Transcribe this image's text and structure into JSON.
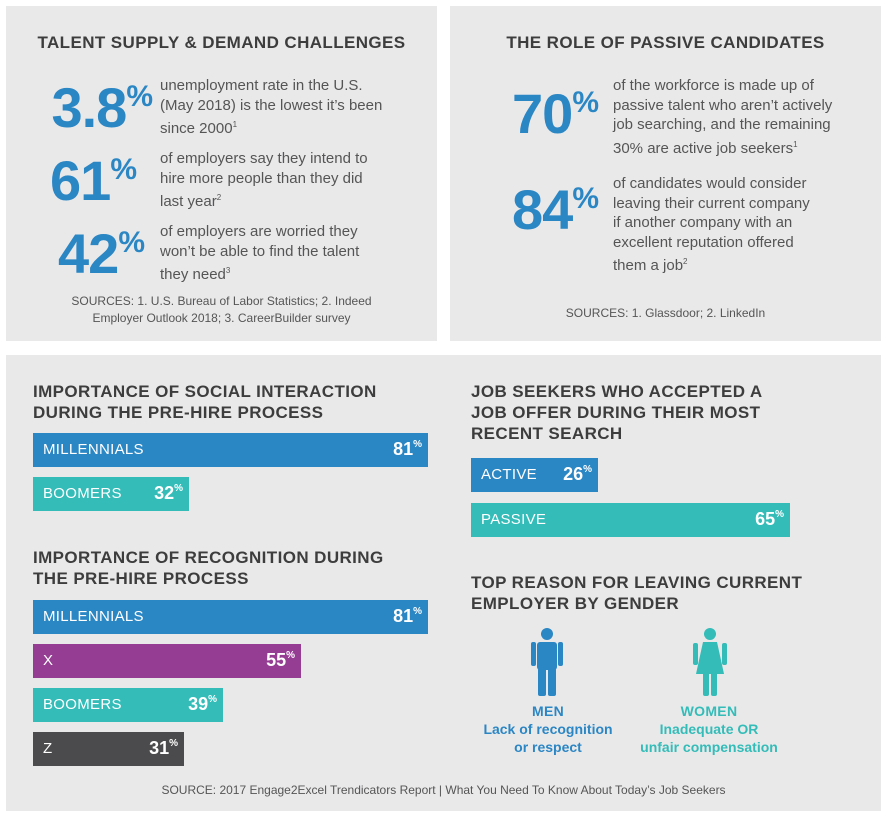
{
  "colors": {
    "blue": "#2b86c4",
    "teal": "#33bcb8",
    "purple": "#943d93",
    "dark": "#4b4b4d",
    "panel": "#e9e9ea"
  },
  "supply": {
    "title": "TALENT SUPPLY & DEMAND CHALLENGES",
    "stats": [
      {
        "num": "3.8",
        "pct": "%",
        "lines": [
          "unemployment rate in the U.S.",
          "(May 2018) is the lowest it’s been",
          "since 2000"
        ],
        "ref": "1"
      },
      {
        "num": "61",
        "pct": "%",
        "lines": [
          "of employers say they intend to",
          "hire more people than they did",
          "last year"
        ],
        "ref": "2"
      },
      {
        "num": "42",
        "pct": "%",
        "lines": [
          "of employers are worried they",
          "won’t be able to find the talent",
          "they need"
        ],
        "ref": "3"
      }
    ],
    "sources_line1": "SOURCES: 1. U.S. Bureau of Labor Statistics; 2. Indeed",
    "sources_line2": "Employer Outlook 2018; 3. CareerBuilder survey"
  },
  "passive": {
    "title": "THE ROLE OF PASSIVE CANDIDATES",
    "stats": [
      {
        "num": "70",
        "pct": "%",
        "lines": [
          "of the workforce is made up of",
          "passive talent who aren’t actively",
          "job searching, and the remaining",
          "30% are active job seekers"
        ],
        "ref": "1"
      },
      {
        "num": "84",
        "pct": "%",
        "lines": [
          "of candidates would consider",
          "leaving their current company",
          "if another company with an",
          "excellent reputation offered",
          "them a job"
        ],
        "ref": "2"
      }
    ],
    "sources": "SOURCES: 1. Glassdoor; 2. LinkedIn"
  },
  "chart_data": [
    {
      "type": "bar",
      "title_line1": "IMPORTANCE OF SOCIAL INTERACTION",
      "title_line2": "DURING THE PRE-HIRE PROCESS",
      "unit": "%",
      "xlim": [
        0,
        100
      ],
      "categories": [
        "MILLENNIALS",
        "BOOMERS"
      ],
      "values": [
        81,
        32
      ],
      "colors": [
        "#2b86c4",
        "#33bcb8"
      ]
    },
    {
      "type": "bar",
      "title_line1": "IMPORTANCE OF RECOGNITION DURING",
      "title_line2": "THE PRE-HIRE PROCESS",
      "unit": "%",
      "xlim": [
        0,
        100
      ],
      "categories": [
        "MILLENNIALS",
        "X",
        "BOOMERS",
        "Z"
      ],
      "values": [
        81,
        55,
        39,
        31
      ],
      "colors": [
        "#2b86c4",
        "#943d93",
        "#33bcb8",
        "#4b4b4d"
      ]
    },
    {
      "type": "bar",
      "title_line1": "JOB SEEKERS WHO ACCEPTED A",
      "title_line2": "JOB OFFER DURING THEIR MOST",
      "title_line3": "RECENT SEARCH",
      "unit": "%",
      "xlim": [
        0,
        100
      ],
      "categories": [
        "ACTIVE",
        "PASSIVE"
      ],
      "values": [
        26,
        65
      ],
      "colors": [
        "#2b86c4",
        "#33bcb8"
      ]
    }
  ],
  "gender": {
    "title_line1": "TOP REASON FOR LEAVING CURRENT",
    "title_line2": "EMPLOYER BY GENDER",
    "men": {
      "label": "MEN",
      "line1": "Lack of recognition",
      "line2": "or respect",
      "icon": "man-icon"
    },
    "women": {
      "label": "WOMEN",
      "line1": "Inadequate OR",
      "line2": "unfair compensation",
      "icon": "woman-icon"
    }
  },
  "footer": "SOURCE: 2017 Engage2Excel Trendicators Report |  What You Need To Know About Today’s Job Seekers"
}
